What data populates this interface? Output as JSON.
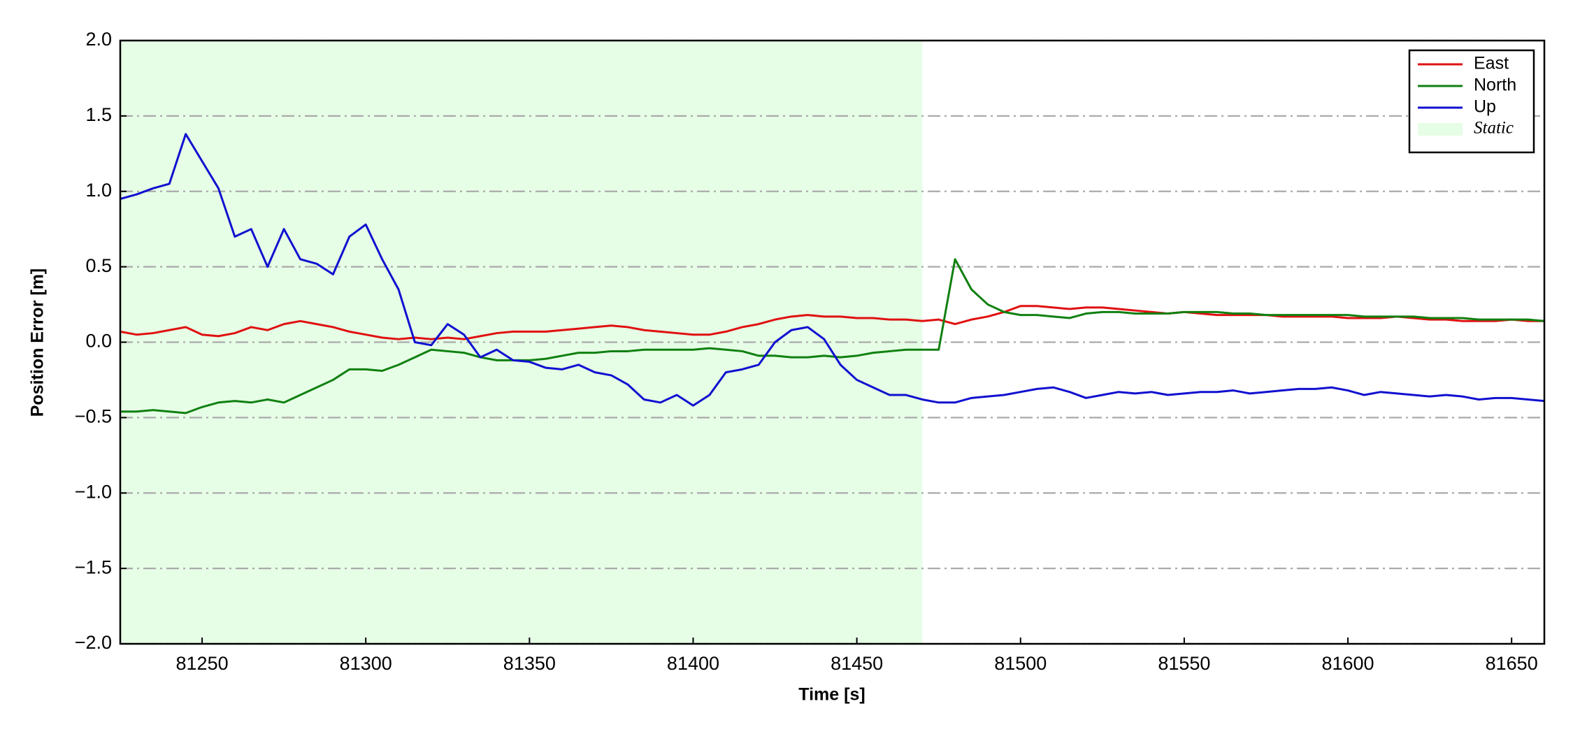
{
  "chart_data": {
    "type": "line",
    "xlabel": "Time [s]",
    "ylabel": "Position Error [m]",
    "xlim": [
      81225,
      81660
    ],
    "ylim": [
      -2,
      2
    ],
    "xticks": [
      81250,
      81300,
      81350,
      81400,
      81450,
      81500,
      81550,
      81600,
      81650
    ],
    "yticks": [
      {
        "value": 2,
        "label": "2.0"
      },
      1.5,
      {
        "value": 1,
        "label": "1.0"
      },
      0.5,
      {
        "value": 0,
        "label": "0.0"
      },
      {
        "value": -0.5,
        "label": "−0.5"
      },
      {
        "value": -1,
        "label": "−1.0"
      },
      {
        "value": -1.5,
        "label": "−1.5"
      },
      {
        "value": -2,
        "label": "−2.0"
      }
    ],
    "grid": "y",
    "legend": "upper right",
    "shaded_region": {
      "name": "Static",
      "color": "#e6fde6",
      "x": [
        81225,
        81470
      ]
    },
    "x": [
      81225,
      81230,
      81235,
      81240,
      81245,
      81250,
      81255,
      81260,
      81265,
      81270,
      81275,
      81280,
      81285,
      81290,
      81295,
      81300,
      81305,
      81310,
      81315,
      81320,
      81325,
      81330,
      81335,
      81340,
      81345,
      81350,
      81355,
      81360,
      81365,
      81370,
      81375,
      81380,
      81385,
      81390,
      81395,
      81400,
      81405,
      81410,
      81415,
      81420,
      81425,
      81430,
      81435,
      81440,
      81445,
      81450,
      81455,
      81460,
      81465,
      81470,
      81475,
      81480,
      81485,
      81490,
      81495,
      81500,
      81505,
      81510,
      81515,
      81520,
      81525,
      81530,
      81535,
      81540,
      81545,
      81550,
      81555,
      81560,
      81565,
      81570,
      81575,
      81580,
      81585,
      81590,
      81595,
      81600,
      81605,
      81610,
      81615,
      81620,
      81625,
      81630,
      81635,
      81640,
      81645,
      81650,
      81655,
      81660
    ],
    "series": [
      {
        "name": "East",
        "color": "#e01010",
        "values": [
          0.07,
          0.05,
          0.06,
          0.08,
          0.1,
          0.05,
          0.04,
          0.06,
          0.1,
          0.08,
          0.12,
          0.14,
          0.12,
          0.1,
          0.07,
          0.05,
          0.03,
          0.02,
          0.03,
          0.02,
          0.03,
          0.02,
          0.04,
          0.06,
          0.07,
          0.07,
          0.07,
          0.08,
          0.09,
          0.1,
          0.11,
          0.1,
          0.08,
          0.07,
          0.06,
          0.05,
          0.05,
          0.07,
          0.1,
          0.12,
          0.15,
          0.17,
          0.18,
          0.17,
          0.17,
          0.16,
          0.16,
          0.15,
          0.15,
          0.14,
          0.15,
          0.12,
          0.15,
          0.17,
          0.2,
          0.24,
          0.24,
          0.23,
          0.22,
          0.23,
          0.23,
          0.22,
          0.21,
          0.2,
          0.19,
          0.2,
          0.19,
          0.18,
          0.18,
          0.18,
          0.18,
          0.17,
          0.17,
          0.17,
          0.17,
          0.16,
          0.16,
          0.16,
          0.17,
          0.16,
          0.15,
          0.15,
          0.14,
          0.14,
          0.14,
          0.15,
          0.14,
          0.14
        ]
      },
      {
        "name": "North",
        "color": "#108010",
        "values": [
          -0.46,
          -0.46,
          -0.45,
          -0.46,
          -0.47,
          -0.43,
          -0.4,
          -0.39,
          -0.4,
          -0.38,
          -0.4,
          -0.35,
          -0.3,
          -0.25,
          -0.18,
          -0.18,
          -0.19,
          -0.15,
          -0.1,
          -0.05,
          -0.06,
          -0.07,
          -0.1,
          -0.12,
          -0.12,
          -0.12,
          -0.11,
          -0.09,
          -0.07,
          -0.07,
          -0.06,
          -0.06,
          -0.05,
          -0.05,
          -0.05,
          -0.05,
          -0.04,
          -0.05,
          -0.06,
          -0.09,
          -0.09,
          -0.1,
          -0.1,
          -0.09,
          -0.1,
          -0.09,
          -0.07,
          -0.06,
          -0.05,
          -0.05,
          -0.05,
          0.55,
          0.35,
          0.25,
          0.2,
          0.18,
          0.18,
          0.17,
          0.16,
          0.19,
          0.2,
          0.2,
          0.19,
          0.19,
          0.19,
          0.2,
          0.2,
          0.2,
          0.19,
          0.19,
          0.18,
          0.18,
          0.18,
          0.18,
          0.18,
          0.18,
          0.17,
          0.17,
          0.17,
          0.17,
          0.16,
          0.16,
          0.16,
          0.15,
          0.15,
          0.15,
          0.15,
          0.14
        ]
      },
      {
        "name": "Up",
        "color": "#1010d0",
        "values": [
          0.95,
          0.98,
          1.02,
          1.05,
          1.38,
          1.2,
          1.02,
          0.7,
          0.75,
          0.5,
          0.75,
          0.55,
          0.52,
          0.45,
          0.7,
          0.78,
          0.55,
          0.35,
          0.0,
          -0.02,
          0.12,
          0.05,
          -0.1,
          -0.05,
          -0.12,
          -0.13,
          -0.17,
          -0.18,
          -0.15,
          -0.2,
          -0.22,
          -0.28,
          -0.38,
          -0.4,
          -0.35,
          -0.42,
          -0.35,
          -0.2,
          -0.18,
          -0.15,
          0.0,
          0.08,
          0.1,
          0.02,
          -0.15,
          -0.25,
          -0.3,
          -0.35,
          -0.35,
          -0.38,
          -0.4,
          -0.4,
          -0.37,
          -0.36,
          -0.35,
          -0.33,
          -0.31,
          -0.3,
          -0.33,
          -0.37,
          -0.35,
          -0.33,
          -0.34,
          -0.33,
          -0.35,
          -0.34,
          -0.33,
          -0.33,
          -0.32,
          -0.34,
          -0.33,
          -0.32,
          -0.31,
          -0.31,
          -0.3,
          -0.32,
          -0.35,
          -0.33,
          -0.34,
          -0.35,
          -0.36,
          -0.35,
          -0.36,
          -0.38,
          -0.37,
          -0.37,
          -0.38,
          -0.39
        ]
      }
    ]
  }
}
